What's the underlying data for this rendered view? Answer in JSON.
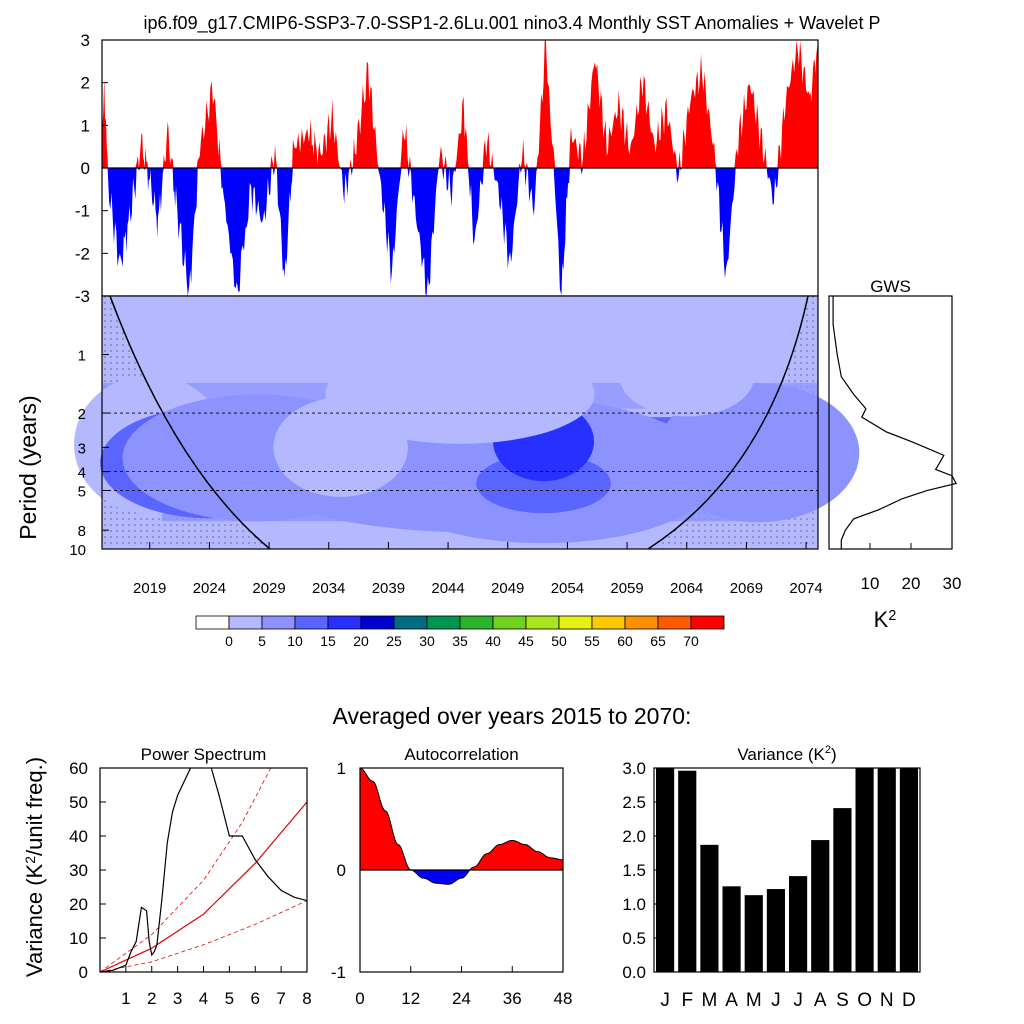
{
  "title": "ip6.f09_g17.CMIP6-SSP3-7.0-SSP1-2.6Lu.001 nino3.4 Monthly SST Anomalies + Wavelet P",
  "colors": {
    "positive": "#ff0000",
    "negative": "#0000ff",
    "wavelet_bg": "#b4b8ff"
  },
  "chart_data": [
    {
      "id": "timeseries",
      "type": "area",
      "title": "",
      "ylim": [
        -3,
        3
      ],
      "yticks": [
        "3",
        "2",
        "1",
        "0",
        "-1",
        "-2",
        "-3"
      ],
      "x_start": 2015,
      "x_end": 2075,
      "envelope": [
        [
          2015,
          0.3
        ],
        [
          2015.2,
          2.1
        ],
        [
          2015.5,
          -0.4
        ],
        [
          2016.5,
          -2.3
        ],
        [
          2017.3,
          -1.2
        ],
        [
          2018.3,
          0.6
        ],
        [
          2019,
          -0.3
        ],
        [
          2019.7,
          -1.3
        ],
        [
          2020.5,
          0.9
        ],
        [
          2021.2,
          -0.8
        ],
        [
          2022.3,
          -3
        ],
        [
          2023.2,
          0.5
        ],
        [
          2024.3,
          1.9
        ],
        [
          2025.2,
          -0.7
        ],
        [
          2026.3,
          -3
        ],
        [
          2027.5,
          -0.5
        ],
        [
          2028.5,
          -1.3
        ],
        [
          2029.5,
          0.4
        ],
        [
          2030.3,
          -2.7
        ],
        [
          2031,
          0.3
        ],
        [
          2032.5,
          0.7
        ],
        [
          2033.3,
          0.3
        ],
        [
          2034.3,
          1.2
        ],
        [
          2035.3,
          -0.6
        ],
        [
          2036.2,
          0.4
        ],
        [
          2037.3,
          2.3
        ],
        [
          2038.3,
          -0.3
        ],
        [
          2039.3,
          -2.5
        ],
        [
          2040.3,
          1.0
        ],
        [
          2041.3,
          -1.1
        ],
        [
          2042.3,
          -3
        ],
        [
          2043.3,
          0.4
        ],
        [
          2044.3,
          -0.6
        ],
        [
          2045.3,
          1.5
        ],
        [
          2046.2,
          -1.8
        ],
        [
          2047.2,
          0.7
        ],
        [
          2048.2,
          -0.5
        ],
        [
          2049.2,
          -2.3
        ],
        [
          2050.2,
          0.4
        ],
        [
          2051.2,
          -1.0
        ],
        [
          2052.2,
          3.0
        ],
        [
          2053.5,
          -3
        ],
        [
          2054.3,
          0.8
        ],
        [
          2055.3,
          0.2
        ],
        [
          2056.3,
          2.6
        ],
        [
          2057.3,
          0.5
        ],
        [
          2058.3,
          1.5
        ],
        [
          2059.3,
          0.4
        ],
        [
          2060.3,
          2.1
        ],
        [
          2061.3,
          0.5
        ],
        [
          2062.3,
          1.4
        ],
        [
          2063.3,
          -0.2
        ],
        [
          2064.3,
          1.6
        ],
        [
          2065.3,
          2.3
        ],
        [
          2066.3,
          0.4
        ],
        [
          2067.3,
          -2.6
        ],
        [
          2068.3,
          0.7
        ],
        [
          2069.3,
          2.0
        ],
        [
          2070.3,
          0.6
        ],
        [
          2071.3,
          -0.8
        ],
        [
          2072.3,
          1.6
        ],
        [
          2073.3,
          2.9
        ],
        [
          2074.3,
          1.6
        ],
        [
          2075,
          3.0
        ]
      ]
    },
    {
      "id": "wavelet",
      "type": "heatmap",
      "title": "",
      "ylabel": "Period (years)",
      "yticks": [
        "1",
        "2",
        "3",
        "4",
        "5",
        "8",
        "10"
      ],
      "ytick_values": [
        1,
        2,
        3,
        4,
        5,
        8,
        10
      ],
      "xticks": [
        "2019",
        "2024",
        "2029",
        "2034",
        "2039",
        "2044",
        "2049",
        "2054",
        "2059",
        "2064",
        "2069",
        "2074"
      ],
      "xtick_values": [
        2019,
        2024,
        2029,
        2034,
        2039,
        2044,
        2049,
        2054,
        2059,
        2064,
        2069,
        2074
      ],
      "xlim": [
        2015,
        2075
      ],
      "ylim_period": [
        0.5,
        10
      ],
      "colorbar_labels": [
        "0",
        "5",
        "10",
        "15",
        "20",
        "25",
        "30",
        "35",
        "40",
        "45",
        "50",
        "55",
        "60",
        "65",
        "70"
      ],
      "colorbar_colors": [
        "#ffffff",
        "#b4b8ff",
        "#8c93ff",
        "#5a64ff",
        "#2830ff",
        "#0000d0",
        "#006c82",
        "#009650",
        "#2db42d",
        "#6ed21e",
        "#aae61e",
        "#e6f014",
        "#ffc800",
        "#ff9100",
        "#ff5a00",
        "#ff0000"
      ],
      "blobs": [
        {
          "x": 2019,
          "p": 2.9,
          "rx": 4.5,
          "ry": 0.35,
          "level": 3
        },
        {
          "x": 2024,
          "p": 3.6,
          "rx": 5,
          "ry": 0.22,
          "level": 15
        },
        {
          "x": 2024,
          "p": 3.6,
          "rx": 6.5,
          "ry": 0.28,
          "level": 12
        },
        {
          "x": 2028,
          "p": 3.4,
          "rx": 8,
          "ry": 0.32,
          "level": 9
        },
        {
          "x": 2046,
          "p": 3.6,
          "rx": 14,
          "ry": 0.35,
          "level": 8
        },
        {
          "x": 2052,
          "p": 4.4,
          "rx": 10,
          "ry": 0.32,
          "level": 9
        },
        {
          "x": 2052,
          "p": 4.6,
          "rx": 4,
          "ry": 0.15,
          "level": 13
        },
        {
          "x": 2052,
          "p": 2.8,
          "rx": 3,
          "ry": 0.2,
          "level": 14
        },
        {
          "x": 2070,
          "p": 3.2,
          "rx": 6,
          "ry": 0.35,
          "level": 8
        },
        {
          "x": 2035,
          "p": 3.0,
          "rx": 4,
          "ry": 0.25,
          "level": 5
        },
        {
          "x": 2045,
          "p": 1.6,
          "rx": 8,
          "ry": 0.25,
          "level": 2
        },
        {
          "x": 2064,
          "p": 1.3,
          "rx": 4,
          "ry": 0.2,
          "level": 2
        }
      ],
      "dotted_periods": [
        2,
        4,
        5
      ]
    },
    {
      "id": "gws",
      "type": "line",
      "title": "GWS",
      "xlabel": "K^2",
      "xticks": [
        "10",
        "20",
        "30"
      ],
      "xtick_values": [
        10,
        20,
        30
      ],
      "xlim": [
        0,
        30
      ],
      "y_period": [
        0.5,
        0.7,
        1,
        1.3,
        1.6,
        1.9,
        2.1,
        2.5,
        2.8,
        3.1,
        3.3,
        3.6,
        3.9,
        4.2,
        4.6,
        5.0,
        5.5,
        6.3,
        7,
        8,
        9,
        10
      ],
      "values": [
        1,
        1,
        2,
        3,
        6,
        9,
        8,
        14,
        20,
        25,
        28,
        27,
        26,
        30,
        31,
        24,
        18,
        12,
        6,
        4,
        3,
        3
      ]
    },
    {
      "id": "power",
      "type": "line",
      "title": "Power Spectrum",
      "ylabel": "Variance (K^2/unit freq.)",
      "xlim": [
        0,
        8
      ],
      "ylim": [
        0,
        60
      ],
      "xticks": [
        "1",
        "2",
        "3",
        "4",
        "5",
        "6",
        "7",
        "8"
      ],
      "yticks": [
        "0",
        "10",
        "20",
        "30",
        "40",
        "50",
        "60"
      ],
      "x": [
        0,
        0.5,
        1,
        1.2,
        1.4,
        1.6,
        1.8,
        1.9,
        2.0,
        2.1,
        2.2,
        2.4,
        2.6,
        2.8,
        3,
        3.5,
        4,
        4.3,
        4.6,
        5,
        5.5,
        6,
        6.5,
        7,
        7.5,
        8
      ],
      "values": [
        0,
        0.5,
        2,
        6,
        9,
        19,
        18,
        9,
        5,
        6,
        8,
        22,
        38,
        47,
        52,
        60,
        63,
        60,
        52,
        40,
        40,
        33,
        28,
        24,
        22,
        21
      ],
      "red_mid": [
        [
          0,
          0
        ],
        [
          2,
          7
        ],
        [
          4,
          17
        ],
        [
          6,
          32
        ],
        [
          8,
          50
        ]
      ],
      "red_lo": [
        [
          0,
          0
        ],
        [
          2,
          3
        ],
        [
          4,
          8
        ],
        [
          6,
          14
        ],
        [
          8,
          21
        ]
      ],
      "red_hi": [
        [
          0,
          0
        ],
        [
          2,
          11
        ],
        [
          4,
          27
        ],
        [
          5.5,
          44
        ],
        [
          6.6,
          60
        ]
      ]
    },
    {
      "id": "autocorr",
      "type": "area",
      "title": "Autocorrelation",
      "xlim": [
        0,
        48
      ],
      "ylim": [
        -1,
        1
      ],
      "xticks": [
        "0",
        "12",
        "24",
        "36",
        "48"
      ],
      "yticks": [
        "1",
        "0",
        "-1"
      ],
      "x": [
        0,
        3,
        6,
        9,
        12,
        15,
        18,
        21,
        24,
        27,
        30,
        33,
        36,
        39,
        42,
        45,
        48
      ],
      "values": [
        1.0,
        0.87,
        0.58,
        0.25,
        0.0,
        -0.08,
        -0.13,
        -0.14,
        -0.08,
        0.03,
        0.16,
        0.25,
        0.29,
        0.25,
        0.18,
        0.12,
        0.1
      ]
    },
    {
      "id": "variance",
      "type": "bar",
      "title": "Variance (K^2)",
      "ylim": [
        0,
        3
      ],
      "yticks": [
        "3.0",
        "2.5",
        "2.0",
        "1.5",
        "1.0",
        "0.5",
        "0.0"
      ],
      "categories": [
        "J",
        "F",
        "M",
        "A",
        "M",
        "J",
        "J",
        "A",
        "S",
        "O",
        "N",
        "D"
      ],
      "values": [
        3.0,
        2.96,
        1.87,
        1.26,
        1.13,
        1.22,
        1.41,
        1.94,
        2.41,
        3.0,
        3.0,
        3.0
      ]
    }
  ],
  "subtitle": "Averaged over years 2015 to 2070:"
}
